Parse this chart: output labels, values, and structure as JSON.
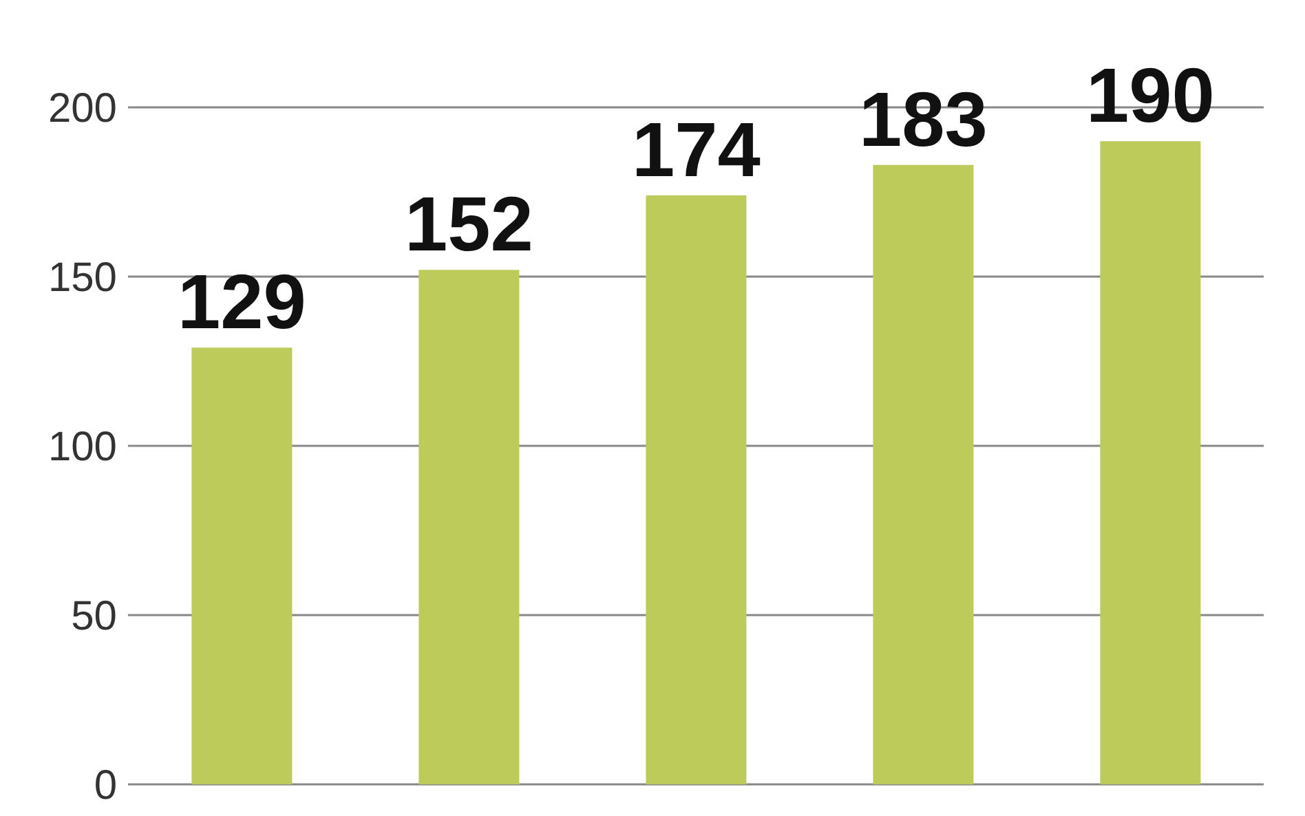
{
  "chart_data": {
    "type": "bar",
    "categories": [
      null,
      null,
      null,
      null,
      null
    ],
    "values": [
      129,
      152,
      174,
      183,
      190
    ],
    "color": "#bccb5a",
    "ylim": [
      0,
      200
    ],
    "yticks": [
      0,
      50,
      100,
      150,
      200
    ],
    "grid": "y",
    "data_labels": true,
    "tick_labels": "y"
  }
}
